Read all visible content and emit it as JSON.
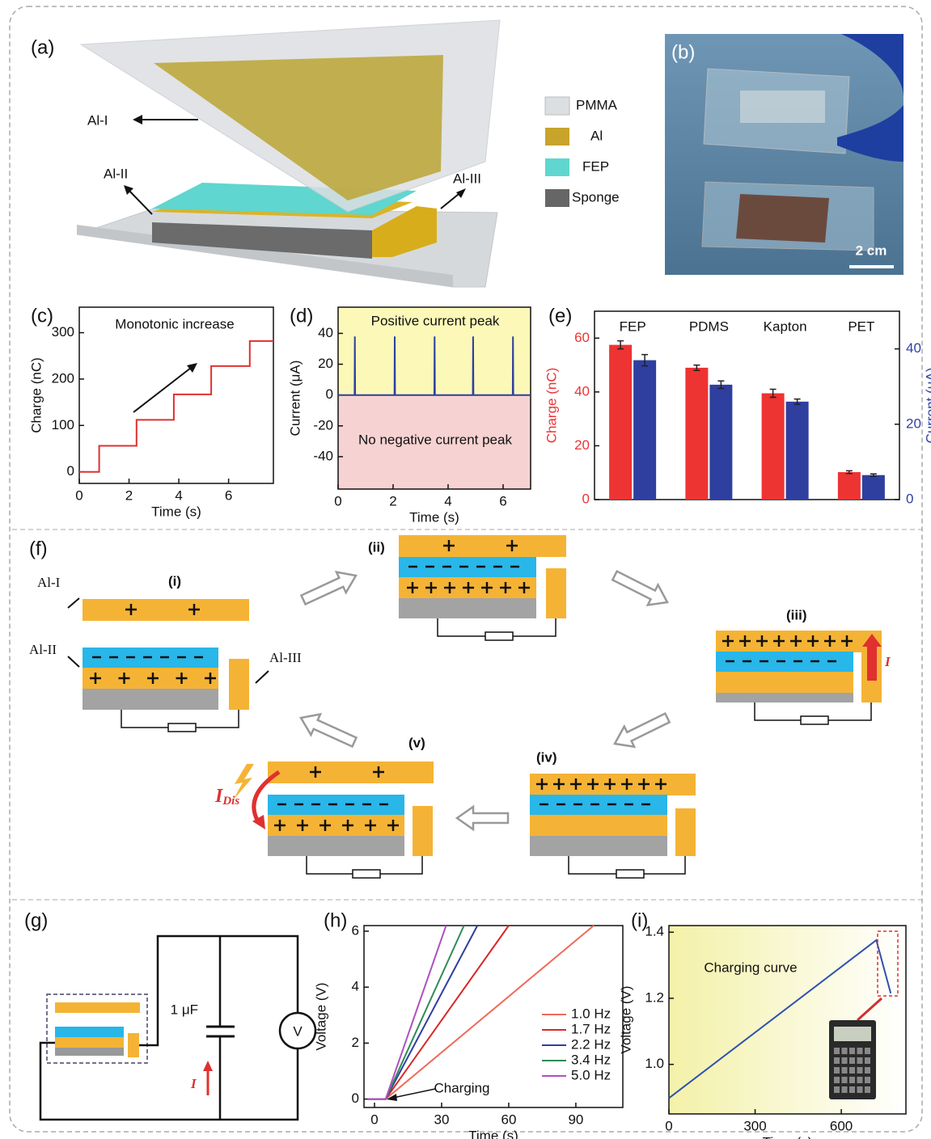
{
  "panel_a": {
    "label": "(a)",
    "Al_I": "Al-I",
    "Al_II": "Al-II",
    "Al_III": "Al-III",
    "legend": [
      "PMMA",
      "Al",
      "FEP",
      "Sponge"
    ]
  },
  "panel_b": {
    "label": "(b)",
    "scale": "2 cm"
  },
  "chart_data": [
    {
      "type": "line",
      "label": "(c)",
      "annotations": [
        "Monotonic increase"
      ],
      "xlabel": "Time (s)",
      "ylabel": "Charge (nC)",
      "x": [
        0,
        0.8,
        0.8,
        2.3,
        2.3,
        3.8,
        3.8,
        5.3,
        5.3,
        6.85,
        6.85,
        7.8
      ],
      "values": [
        0,
        0,
        56,
        56,
        112,
        112,
        167,
        167,
        228,
        228,
        282,
        282
      ],
      "color": "#e03030",
      "xlim": [
        0,
        7.8
      ],
      "ylim": [
        -25,
        355
      ],
      "xticks": [
        0,
        2,
        4,
        6
      ],
      "yticks": [
        0,
        100,
        200,
        300
      ]
    },
    {
      "type": "line",
      "label": "(d)",
      "annotations": [
        "Positive current peak",
        "No negative current peak"
      ],
      "xlabel": "Time (s)",
      "ylabel": "Current (μA)",
      "x": [
        0,
        0.6,
        0.61,
        0.62,
        2.05,
        2.06,
        2.07,
        3.5,
        3.51,
        3.52,
        4.9,
        4.91,
        4.92,
        6.35,
        6.36,
        6.37,
        7.0
      ],
      "values": [
        0,
        0,
        38,
        0,
        0,
        38,
        0,
        0,
        38,
        0,
        0,
        38,
        0,
        0,
        38,
        0,
        0
      ],
      "color": "#2f3fa0",
      "xlim": [
        0,
        7.0
      ],
      "ylim": [
        -61,
        57
      ],
      "xticks": [
        0,
        2,
        4,
        6
      ],
      "yticks": [
        40,
        20,
        0,
        -20,
        -40
      ]
    },
    {
      "type": "bar",
      "label": "(e)",
      "ylabel": "Charge (nC)",
      "y2label": "Current (μA)",
      "categories": [
        "FEP",
        "PDMS",
        "Kapton",
        "PET"
      ],
      "series": [
        {
          "color": "#ee3333",
          "values": [
            57.5,
            49,
            39.5,
            10.2
          ],
          "errors": [
            1.5,
            1,
            1.5,
            0.5
          ]
        },
        {
          "color": "#2f3fa0",
          "values": [
            37,
            30.5,
            26,
            6.5
          ],
          "errors": [
            1.5,
            1,
            0.7,
            0.3
          ],
          "axis": "y2"
        }
      ],
      "ylim": [
        0,
        70
      ],
      "yticks": [
        0,
        20,
        40,
        60
      ],
      "y2lim": [
        0,
        50
      ],
      "y2ticks": [
        0,
        20,
        40
      ]
    },
    {
      "type": "line",
      "label": "(h)",
      "annotations": [
        "Charging"
      ],
      "xlabel": "Time (s)",
      "ylabel": "Voltage (V)",
      "legend": "lower right",
      "series": [
        {
          "name": "1.0 Hz",
          "color": "#f06a5a",
          "x": [
            -3,
            5,
            98
          ],
          "values": [
            0,
            0,
            6.2
          ]
        },
        {
          "name": "1.7 Hz",
          "color": "#d82828",
          "x": [
            -3,
            5,
            60
          ],
          "values": [
            0,
            0,
            6.2
          ]
        },
        {
          "name": "2.2 Hz",
          "color": "#2f3fa0",
          "x": [
            -3,
            5,
            46
          ],
          "values": [
            0,
            0,
            6.2
          ]
        },
        {
          "name": "3.4 Hz",
          "color": "#2e8b57",
          "x": [
            -3,
            5,
            40
          ],
          "values": [
            0,
            0,
            6.2
          ]
        },
        {
          "name": "5.0 Hz",
          "color": "#b050c0",
          "x": [
            -3,
            5,
            32
          ],
          "values": [
            0,
            0,
            6.2
          ]
        }
      ],
      "xlim": [
        -4.7,
        111
      ],
      "ylim": [
        -0.3,
        6.2
      ],
      "xticks": [
        0,
        30,
        60,
        90
      ],
      "yticks": [
        0,
        2,
        4,
        6
      ]
    },
    {
      "type": "line",
      "label": "(i)",
      "annotations": [
        "Charging curve"
      ],
      "xlabel": "Time (s)",
      "ylabel": "Voltage (V)",
      "x": [
        0,
        722,
        772
      ],
      "values": [
        0.898,
        1.376,
        1.215
      ],
      "color": "#3050b0",
      "xlim": [
        0,
        825
      ],
      "ylim": [
        0.85,
        1.42
      ],
      "xticks": [
        0,
        300,
        600
      ],
      "yticks": [
        {
          "value": 1.0,
          "label": "1.0"
        },
        {
          "value": 1.2,
          "label": "1.2"
        },
        {
          "value": 1.4,
          "label": "1.4"
        }
      ]
    }
  ],
  "panel_f": {
    "label": "(f)",
    "steps": [
      "(i)",
      "(ii)",
      "(iii)",
      "(iv)",
      "(v)"
    ],
    "Al_I": "Al-I",
    "Al_II": "Al-II",
    "Al_III": "Al-III",
    "current": "I",
    "discharge_current": "I",
    "discharge_sub": "Dis"
  },
  "panel_g": {
    "label": "(g)",
    "capacitor": "1 μF",
    "meter": "V",
    "current": "I"
  }
}
